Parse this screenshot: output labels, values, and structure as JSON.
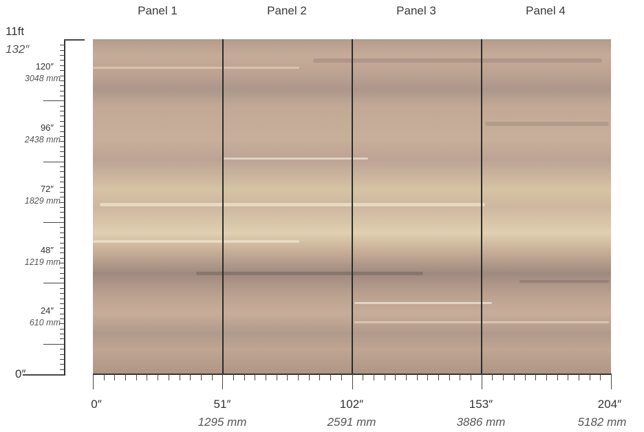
{
  "panels": [
    "Panel 1",
    "Panel 2",
    "Panel 3",
    "Panel 4"
  ],
  "vertical_ruler": {
    "top_label": "11ft",
    "top_label_inches": "132″",
    "marks": [
      {
        "inches": "120″",
        "mm": "3048 mm"
      },
      {
        "inches": "96″",
        "mm": "2438 mm"
      },
      {
        "inches": "72″",
        "mm": "1829 mm"
      },
      {
        "inches": "48″",
        "mm": "1219 mm"
      },
      {
        "inches": "24″",
        "mm": "610 mm"
      }
    ],
    "zero_label": "0″"
  },
  "horizontal_ruler": {
    "marks": [
      {
        "inches": "0″",
        "mm": ""
      },
      {
        "inches": "51″",
        "mm": "1295 mm"
      },
      {
        "inches": "102″",
        "mm": "2591 mm"
      },
      {
        "inches": "153″",
        "mm": "3886 mm"
      },
      {
        "inches": "204″",
        "mm": "5182 mm"
      }
    ]
  },
  "colors": {
    "mural_base": "#c2a996",
    "mural_dark": "#9f8a80",
    "mural_light": "#e0cfb0"
  }
}
